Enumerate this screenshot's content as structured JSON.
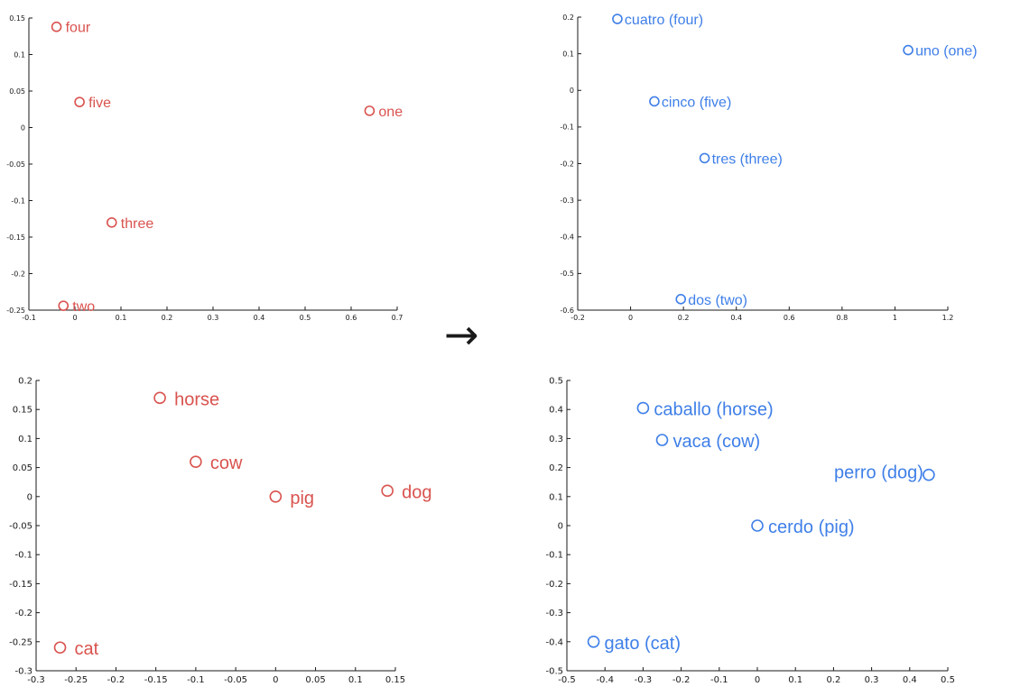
{
  "colors": {
    "english": "#d9534f",
    "spanish": "#3f7fe8"
  },
  "arrow": "→",
  "chart_data": [
    {
      "type": "scatter",
      "id": "numbers-english",
      "color": "#d9534f",
      "xlim": [
        -0.1,
        0.7
      ],
      "ylim": [
        -0.25,
        0.15
      ],
      "xticks": [
        -0.1,
        0,
        0.1,
        0.2,
        0.3,
        0.4,
        0.5,
        0.6,
        0.7
      ],
      "xtick_labels": [
        "-0.1",
        "0",
        "0.1",
        "0.2",
        "0.3",
        "0.4",
        "0.5",
        "0.6",
        "0.7"
      ],
      "yticks": [
        -0.25,
        -0.2,
        -0.15,
        -0.1,
        -0.05,
        0,
        0.05,
        0.1,
        0.15
      ],
      "ytick_labels": [
        "-0.25",
        "-0.2",
        "-0.15",
        "-0.1",
        "-0.05",
        "0",
        "0.05",
        "0.1",
        "0.15"
      ],
      "points": [
        {
          "label": "four",
          "x": -0.04,
          "y": 0.138
        },
        {
          "label": "five",
          "x": 0.01,
          "y": 0.035
        },
        {
          "label": "one",
          "x": 0.64,
          "y": 0.023
        },
        {
          "label": "three",
          "x": 0.08,
          "y": -0.13
        },
        {
          "label": "two",
          "x": -0.025,
          "y": -0.244
        }
      ]
    },
    {
      "type": "scatter",
      "id": "numbers-spanish",
      "color": "#3f7fe8",
      "xlim": [
        -0.2,
        1.2
      ],
      "ylim": [
        -0.6,
        0.2
      ],
      "xticks": [
        -0.2,
        0,
        0.2,
        0.4,
        0.6,
        0.8,
        1,
        1.2
      ],
      "xtick_labels": [
        "-0.2",
        "0",
        "0.2",
        "0.4",
        "0.6",
        "0.8",
        "1",
        "1.2"
      ],
      "yticks": [
        -0.6,
        -0.5,
        -0.4,
        -0.3,
        -0.2,
        -0.1,
        0,
        0.1,
        0.2
      ],
      "ytick_labels": [
        "-0.6",
        "-0.5",
        "-0.4",
        "-0.3",
        "-0.2",
        "-0.1",
        "0",
        "0.1",
        "0.2"
      ],
      "points": [
        {
          "label": "cuatro (four)",
          "x": -0.05,
          "y": 0.195
        },
        {
          "label": "uno (one)",
          "x": 1.05,
          "y": 0.11
        },
        {
          "label": "cinco (five)",
          "x": 0.09,
          "y": -0.03
        },
        {
          "label": "tres (three)",
          "x": 0.28,
          "y": -0.185
        },
        {
          "label": "dos (two)",
          "x": 0.19,
          "y": -0.57
        }
      ]
    },
    {
      "type": "scatter",
      "id": "animals-english",
      "color": "#d9534f",
      "xlim": [
        -0.3,
        0.15
      ],
      "ylim": [
        -0.3,
        0.2
      ],
      "xticks": [
        -0.3,
        -0.25,
        -0.2,
        -0.15,
        -0.1,
        -0.05,
        0,
        0.05,
        0.1,
        0.15
      ],
      "xtick_labels": [
        "-0.3",
        "-0.25",
        "-0.2",
        "-0.15",
        "-0.1",
        "-0.05",
        "0",
        "0.05",
        "0.1",
        "0.15"
      ],
      "yticks": [
        -0.3,
        -0.25,
        -0.2,
        -0.15,
        -0.1,
        -0.05,
        0,
        0.05,
        0.1,
        0.15,
        0.2
      ],
      "ytick_labels": [
        "-0.3",
        "-0.25",
        "-0.2",
        "-0.15",
        "-0.1",
        "-0.05",
        "0",
        "0.05",
        "0.1",
        "0.15",
        "0.2"
      ],
      "points": [
        {
          "label": "horse",
          "x": -0.145,
          "y": 0.17
        },
        {
          "label": "cow",
          "x": -0.1,
          "y": 0.06
        },
        {
          "label": "pig",
          "x": 0.0,
          "y": 0.0
        },
        {
          "label": "dog",
          "x": 0.14,
          "y": 0.01
        },
        {
          "label": "cat",
          "x": -0.27,
          "y": -0.26
        }
      ]
    },
    {
      "type": "scatter",
      "id": "animals-spanish",
      "color": "#3f7fe8",
      "xlim": [
        -0.5,
        0.5
      ],
      "ylim": [
        -0.5,
        0.5
      ],
      "xticks": [
        -0.5,
        -0.4,
        -0.3,
        -0.2,
        -0.1,
        0,
        0.1,
        0.2,
        0.3,
        0.4,
        0.5
      ],
      "xtick_labels": [
        "-0.5",
        "-0.4",
        "-0.3",
        "-0.2",
        "-0.1",
        "0",
        "0.1",
        "0.2",
        "0.3",
        "0.4",
        "0.5"
      ],
      "yticks": [
        -0.5,
        -0.4,
        -0.3,
        -0.2,
        -0.1,
        0,
        0.1,
        0.2,
        0.3,
        0.4,
        0.5
      ],
      "ytick_labels": [
        "-0.5",
        "-0.4",
        "-0.3",
        "-0.2",
        "-0.1",
        "0",
        "0.1",
        "0.2",
        "0.3",
        "0.4",
        "0.5"
      ],
      "points": [
        {
          "label": "caballo (horse)",
          "x": -0.3,
          "y": 0.405
        },
        {
          "label": "vaca (cow)",
          "x": -0.25,
          "y": 0.295
        },
        {
          "label": "perro (dog)",
          "x": 0.45,
          "y": 0.175
        },
        {
          "label": "cerdo (pig)",
          "x": 0.0,
          "y": 0.0
        },
        {
          "label": "gato (cat)",
          "x": -0.43,
          "y": -0.4
        }
      ]
    }
  ]
}
